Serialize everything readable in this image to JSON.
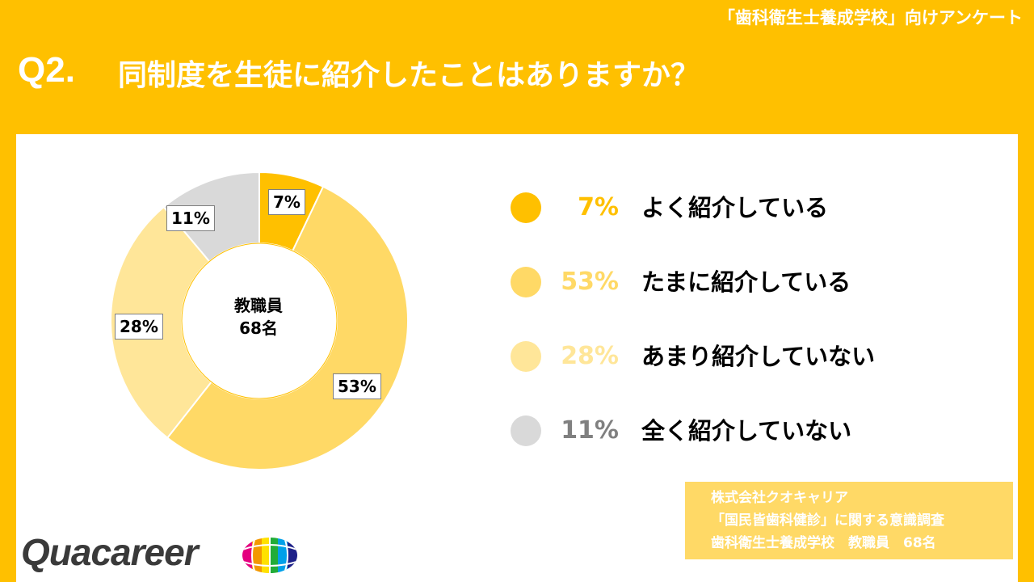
{
  "header": {
    "survey_note": "「歯科衛生士養成学校」向けアンケート",
    "question_label": "Q2.",
    "question_text": "同制度を生徒に紹介したことはありますか？"
  },
  "chart_data": {
    "type": "pie",
    "donut": true,
    "center_label_line1": "教職員",
    "center_label_line2": "68名",
    "slices": [
      {
        "label": "よく紹介している",
        "value": 7,
        "pct_text": "7%",
        "color": "#FFC000",
        "pct_text_color": "#FFC000"
      },
      {
        "label": "たまに紹介している",
        "value": 53,
        "pct_text": "53%",
        "color": "#FFD966",
        "pct_text_color": "#FFD966"
      },
      {
        "label": "あまり紹介していない",
        "value": 28,
        "pct_text": "28%",
        "color": "#FFE699",
        "pct_text_color": "#FFE699"
      },
      {
        "label": "全く紹介していない",
        "value": 11,
        "pct_text": "11%",
        "color": "#D9D9D9",
        "pct_text_color": "#808080"
      }
    ],
    "legend_position": "right"
  },
  "source": {
    "line1": "株式会社クオキャリア",
    "line2": "「国民皆歯科健診」に関する意識調査",
    "line3": "歯科衛生士養成学校　教職員　68名"
  },
  "logo": {
    "text": "Quacareer",
    "icon": "globe-logo-icon"
  }
}
